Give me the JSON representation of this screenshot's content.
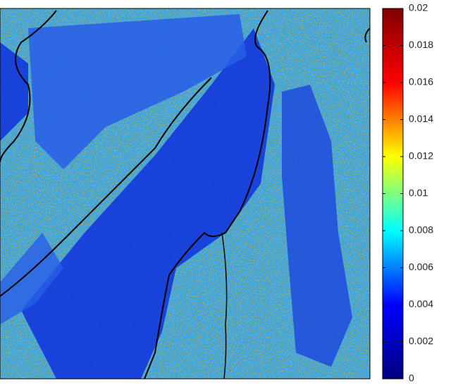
{
  "chart_data": {
    "type": "heatmap",
    "colorbar": {
      "clim": [
        0,
        0.02
      ],
      "ticks": [
        0,
        0.002,
        0.004,
        0.006,
        0.008,
        0.01,
        0.012,
        0.014,
        0.016,
        0.018,
        0.02
      ],
      "colormap": [
        "#00007f",
        "#0000ff",
        "#00ffff",
        "#ffff00",
        "#ff0000",
        "#7f0000"
      ]
    }
  }
}
